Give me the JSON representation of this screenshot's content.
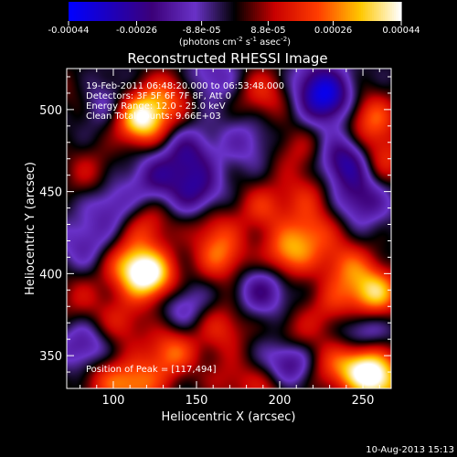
{
  "chart_data": {
    "type": "heatmap",
    "title": "Reconstructed RHESSI Image",
    "xlabel": "Heliocentric X (arcsec)",
    "ylabel": "Heliocentric Y (arcsec)",
    "xlim": [
      72,
      267
    ],
    "ylim": [
      330,
      525
    ],
    "x_ticks": [
      100,
      150,
      200,
      250
    ],
    "y_ticks": [
      350,
      400,
      450,
      500
    ],
    "colorbar": {
      "range": [
        -0.00044,
        0.00044
      ],
      "tick_values": [
        -0.00044,
        -0.00026,
        -8.8e-05,
        8.8e-05,
        0.00026,
        0.00044
      ],
      "tick_labels": [
        "-0.00044",
        "-0.00026",
        "-8.8e-05",
        "8.8e-05",
        "0.00026",
        "0.00044"
      ],
      "units_text": "(photons cm",
      "units_exp1": "-2",
      "units_mid": " s",
      "units_exp2": "-1",
      "units_mid2": " asec",
      "units_exp3": "-2",
      "units_close": ")"
    },
    "annotations": {
      "time": "19-Feb-2011 06:48:20.000 to 06:53:48.000",
      "detectors": "Detectors: 3F 5F 6F 7F 8F, Att 0",
      "energy": "Energy Range: 12.0 - 25.0 keV",
      "clean": "Clean  Total counts: 9.66E+03",
      "peak": "Position of Peak = [117,494]"
    },
    "blobs": [
      {
        "x": 117,
        "y": 494,
        "v": 0.00044
      },
      {
        "x": 132,
        "y": 508,
        "v": 0.0002
      },
      {
        "x": 190,
        "y": 510,
        "v": 0.00018
      },
      {
        "x": 210,
        "y": 475,
        "v": 0.00012
      },
      {
        "x": 255,
        "y": 495,
        "v": 0.00025
      },
      {
        "x": 262,
        "y": 470,
        "v": 0.0002
      },
      {
        "x": 85,
        "y": 462,
        "v": 0.00012
      },
      {
        "x": 190,
        "y": 440,
        "v": 0.00018
      },
      {
        "x": 215,
        "y": 448,
        "v": 0.00014
      },
      {
        "x": 120,
        "y": 430,
        "v": 0.00018
      },
      {
        "x": 160,
        "y": 428,
        "v": 0.00014
      },
      {
        "x": 110,
        "y": 405,
        "v": 0.00028
      },
      {
        "x": 123,
        "y": 398,
        "v": 0.0004
      },
      {
        "x": 165,
        "y": 410,
        "v": 0.00024
      },
      {
        "x": 205,
        "y": 412,
        "v": 0.00028
      },
      {
        "x": 220,
        "y": 425,
        "v": 0.0002
      },
      {
        "x": 240,
        "y": 405,
        "v": 0.00022
      },
      {
        "x": 257,
        "y": 388,
        "v": 0.00038
      },
      {
        "x": 232,
        "y": 380,
        "v": 0.00016
      },
      {
        "x": 80,
        "y": 385,
        "v": 0.00012
      },
      {
        "x": 105,
        "y": 370,
        "v": 0.00016
      },
      {
        "x": 135,
        "y": 352,
        "v": 0.00026
      },
      {
        "x": 165,
        "y": 367,
        "v": 0.00018
      },
      {
        "x": 210,
        "y": 362,
        "v": 0.00014
      },
      {
        "x": 250,
        "y": 343,
        "v": 0.00038
      },
      {
        "x": 230,
        "y": 343,
        "v": 0.00016
      },
      {
        "x": 95,
        "y": 335,
        "v": 0.00018
      },
      {
        "x": 115,
        "y": 332,
        "v": 0.00026
      },
      {
        "x": 195,
        "y": 332,
        "v": 0.00016
      },
      {
        "x": 262,
        "y": 333,
        "v": 0.0003
      },
      {
        "x": 78,
        "y": 510,
        "v": 8e-05
      },
      {
        "x": 170,
        "y": 335,
        "v": 0.00012
      },
      {
        "x": 93,
        "y": 505,
        "v": -0.00012
      },
      {
        "x": 145,
        "y": 473,
        "v": -0.0002
      },
      {
        "x": 230,
        "y": 505,
        "v": -0.00026
      },
      {
        "x": 240,
        "y": 468,
        "v": -0.00028
      },
      {
        "x": 222,
        "y": 515,
        "v": -0.0002
      },
      {
        "x": 125,
        "y": 458,
        "v": -0.00018
      },
      {
        "x": 100,
        "y": 440,
        "v": -0.00016
      },
      {
        "x": 150,
        "y": 450,
        "v": -0.00022
      },
      {
        "x": 250,
        "y": 445,
        "v": -0.0002
      },
      {
        "x": 83,
        "y": 418,
        "v": -0.00014
      },
      {
        "x": 190,
        "y": 390,
        "v": -0.0002
      },
      {
        "x": 142,
        "y": 380,
        "v": -0.00014
      },
      {
        "x": 250,
        "y": 365,
        "v": -0.00018
      },
      {
        "x": 83,
        "y": 355,
        "v": -0.00018
      },
      {
        "x": 205,
        "y": 345,
        "v": -0.00028
      },
      {
        "x": 180,
        "y": 480,
        "v": -0.00012
      },
      {
        "x": 160,
        "y": 520,
        "v": -0.00014
      }
    ]
  },
  "footer": {
    "date": "10-Aug-2013 15:13"
  }
}
